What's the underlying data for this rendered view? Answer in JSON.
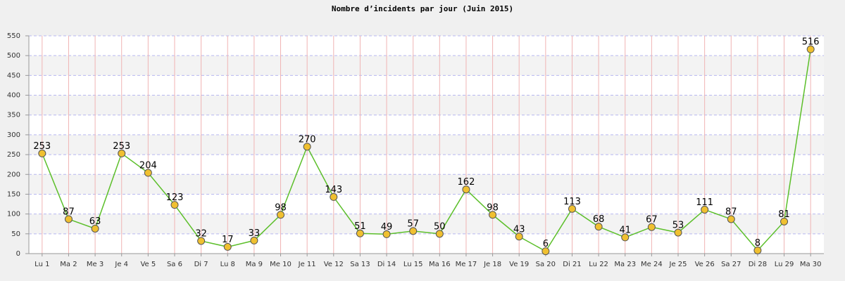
{
  "chart_data": {
    "type": "line",
    "title": "Nombre d’incidents par jour (Juin 2015)",
    "categories": [
      "Lu 1",
      "Ma 2",
      "Me 3",
      "Je 4",
      "Ve 5",
      "Sa 6",
      "Di 7",
      "Lu 8",
      "Ma 9",
      "Me 10",
      "Je 11",
      "Ve 12",
      "Sa 13",
      "Di 14",
      "Lu 15",
      "Ma 16",
      "Me 17",
      "Je 18",
      "Ve 19",
      "Sa 20",
      "Di 21",
      "Lu 22",
      "Ma 23",
      "Me 24",
      "Je 25",
      "Ve 26",
      "Sa 27",
      "Di 28",
      "Lu 29",
      "Ma 30"
    ],
    "values": [
      253,
      87,
      63,
      253,
      204,
      123,
      32,
      17,
      33,
      98,
      270,
      143,
      51,
      49,
      57,
      50,
      162,
      98,
      43,
      6,
      113,
      68,
      41,
      67,
      53,
      111,
      87,
      8,
      81,
      516
    ],
    "color": "#5cbf2a",
    "marker_color": "#f0c030",
    "ylim": [
      0,
      550
    ],
    "yticks": [
      0,
      50,
      100,
      150,
      200,
      250,
      300,
      350,
      400,
      450,
      500,
      550
    ],
    "grid": true
  }
}
